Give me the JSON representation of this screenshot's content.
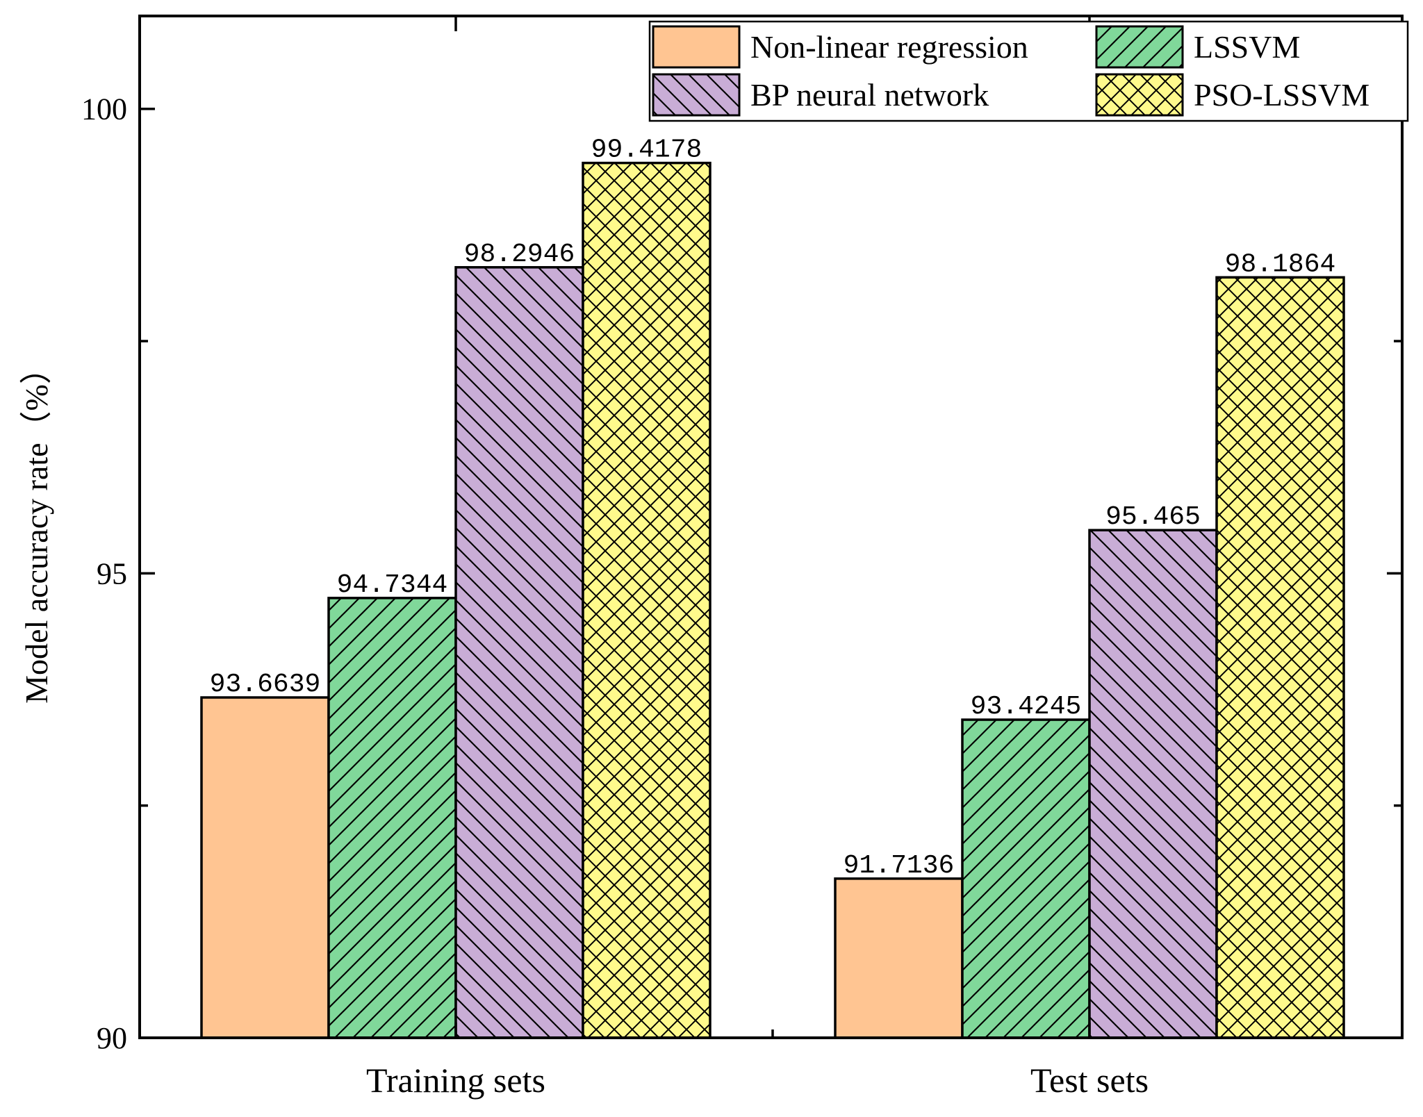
{
  "chart_data": {
    "type": "bar",
    "title": "",
    "xlabel": "",
    "ylabel": "Model accuracy rate（%）",
    "ylim": [
      90,
      101
    ],
    "yticks": [
      90,
      95,
      100
    ],
    "categories": [
      "Training sets",
      "Test sets"
    ],
    "series": [
      {
        "name": "Non-linear regression",
        "values": [
          93.6639,
          91.7136
        ],
        "labels": [
          "93.6639",
          "91.7136"
        ],
        "color": "#FFC592",
        "pattern": "none"
      },
      {
        "name": "LSSVM",
        "values": [
          94.7344,
          93.4245
        ],
        "labels": [
          "94.7344",
          "93.4245"
        ],
        "color": "#80D89A",
        "pattern": "forward-diagonal"
      },
      {
        "name": "BP neural network",
        "values": [
          98.2946,
          95.465
        ],
        "labels": [
          "98.2946",
          "95.465"
        ],
        "color": "#C9ADD6",
        "pattern": "backward-diagonal"
      },
      {
        "name": "PSO-LSSVM",
        "values": [
          99.4178,
          98.1864
        ],
        "labels": [
          "99.4178",
          "98.1864"
        ],
        "color": "#FFFA8C",
        "pattern": "crosshatch"
      }
    ],
    "legend_position": "top-right",
    "grid": false
  }
}
